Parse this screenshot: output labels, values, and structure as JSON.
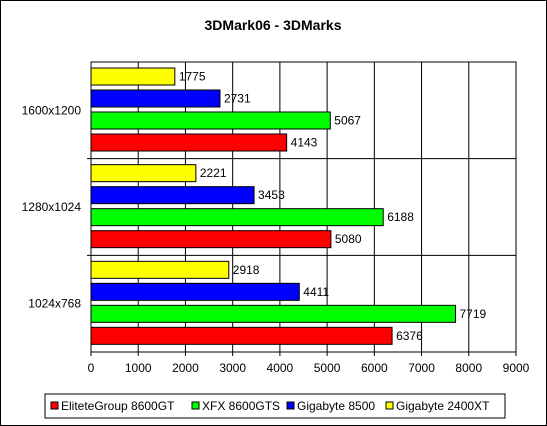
{
  "chart_data": {
    "type": "bar",
    "orientation": "horizontal",
    "title": "3DMark06 - 3DMarks",
    "categories": [
      "1600x1200",
      "1280x1024",
      "1024x768"
    ],
    "series": [
      {
        "name": "Gigabyte 2400XT",
        "color": "#ffff00",
        "values": [
          1775,
          2221,
          2918
        ]
      },
      {
        "name": "Gigabyte 8500",
        "color": "#0000ff",
        "values": [
          2731,
          3453,
          4411
        ]
      },
      {
        "name": "XFX 8600GTS",
        "color": "#00ff00",
        "values": [
          5067,
          6188,
          7719
        ]
      },
      {
        "name": "EliteteGroup 8600GT",
        "color": "#ff0000",
        "values": [
          4143,
          5080,
          6376
        ]
      }
    ],
    "legend_order": [
      "EliteteGroup 8600GT",
      "XFX 8600GTS",
      "Gigabyte 8500",
      "Gigabyte 2400XT"
    ],
    "xlim": [
      0,
      9000
    ],
    "xticks": [
      0,
      1000,
      2000,
      3000,
      4000,
      5000,
      6000,
      7000,
      8000,
      9000
    ],
    "grid": "vertical",
    "legend_position": "bottom"
  }
}
